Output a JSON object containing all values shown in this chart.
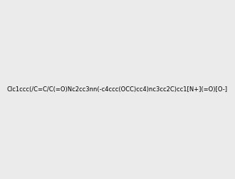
{
  "smiles": "Clc1ccc(/C=C/C(=O)Nc2cc3nn(-c4ccc(OCC)cc4)nc3cc2C)cc1[N+](=O)[O-]",
  "img_size": [
    300,
    300
  ],
  "background": "#ebebeb",
  "atom_colors": {
    "N": "blue",
    "O": "red",
    "Cl": "green",
    "H": "teal"
  }
}
